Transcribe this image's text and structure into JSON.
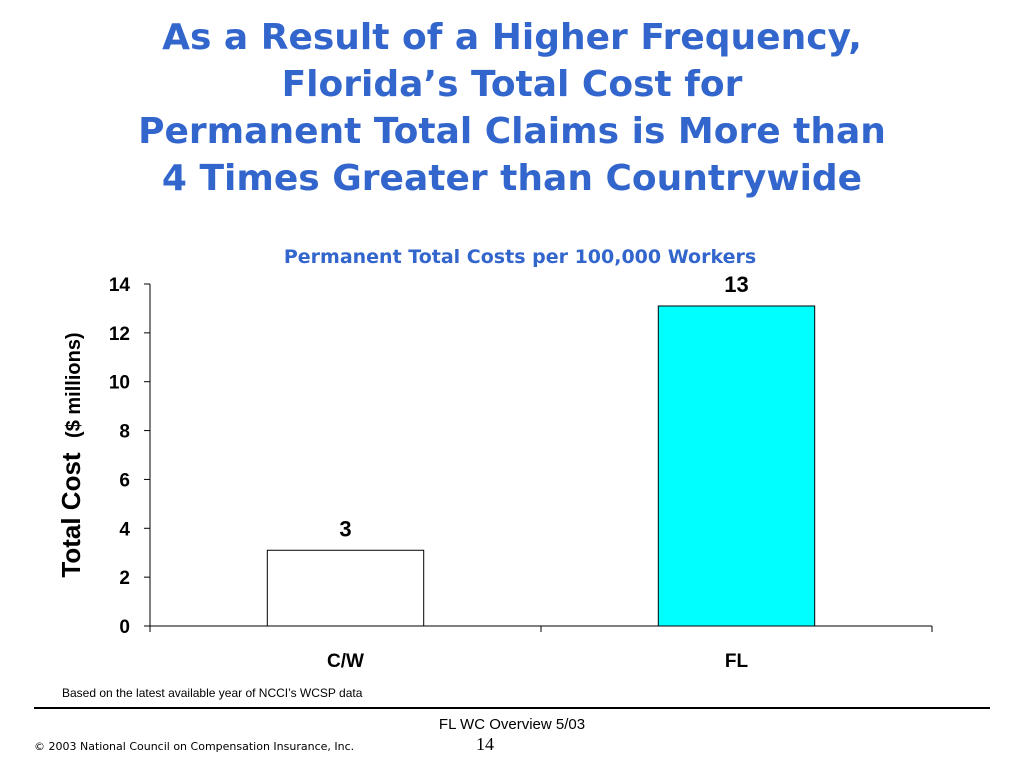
{
  "slide": {
    "title_lines": [
      "As a Result of a Higher Frequency,",
      "Florida’s Total Cost for",
      "Permanent Total Claims is More than",
      "4 Times Greater than Countrywide"
    ],
    "title_color": "#3366cc"
  },
  "chart_data": {
    "type": "bar",
    "title": "Permanent Total Costs per 100,000 Workers",
    "categories": [
      "C/W",
      "FL"
    ],
    "values": [
      3.1,
      13.1
    ],
    "data_labels": [
      "3",
      "13"
    ],
    "bar_colors": [
      "#ffffff",
      "#00ffff"
    ],
    "ylabel_main": "Total Cost",
    "ylabel_unit": "($ millions)",
    "xlabel": "",
    "ylim": [
      0,
      14
    ],
    "yticks": [
      0,
      2,
      4,
      6,
      8,
      10,
      12,
      14
    ],
    "grid": false,
    "legend": "none"
  },
  "footer": {
    "note": "Based on the latest available year of NCCI’s WCSP data",
    "center": "FL WC Overview 5/03",
    "page_number": "14",
    "copyright": "© 2003 National Council on Compensation Insurance, Inc."
  }
}
